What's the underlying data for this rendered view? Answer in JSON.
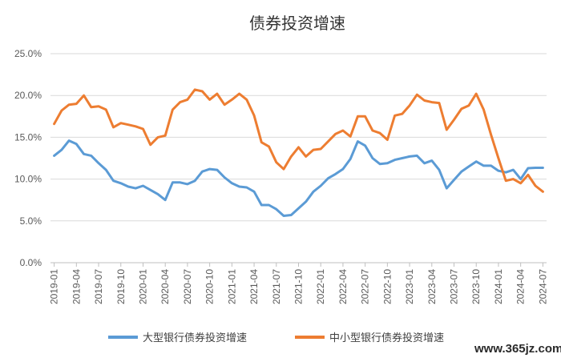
{
  "chart_data": {
    "type": "line",
    "title": "债券投资增速",
    "x": [
      "2019-01",
      "2019-02",
      "2019-03",
      "2019-04",
      "2019-05",
      "2019-06",
      "2019-07",
      "2019-08",
      "2019-09",
      "2019-10",
      "2019-11",
      "2019-12",
      "2020-01",
      "2020-02",
      "2020-03",
      "2020-04",
      "2020-05",
      "2020-06",
      "2020-07",
      "2020-08",
      "2020-09",
      "2020-10",
      "2020-11",
      "2020-12",
      "2021-01",
      "2021-02",
      "2021-03",
      "2021-04",
      "2021-05",
      "2021-06",
      "2021-07",
      "2021-08",
      "2021-09",
      "2021-10",
      "2021-11",
      "2021-12",
      "2022-01",
      "2022-02",
      "2022-03",
      "2022-04",
      "2022-05",
      "2022-06",
      "2022-07",
      "2022-08",
      "2022-09",
      "2022-10",
      "2022-11",
      "2022-12",
      "2023-01",
      "2023-02",
      "2023-03",
      "2023-04",
      "2023-05",
      "2023-06",
      "2023-07",
      "2023-08",
      "2023-09",
      "2023-10",
      "2023-11",
      "2023-12",
      "2024-01",
      "2024-02",
      "2024-03",
      "2024-04",
      "2024-05",
      "2024-06",
      "2024-07"
    ],
    "tick_labels": [
      "2019-01",
      "2019-04",
      "2019-07",
      "2019-10",
      "2020-01",
      "2020-04",
      "2020-07",
      "2020-10",
      "2021-01",
      "2021-04",
      "2021-07",
      "2021-10",
      "2022-01",
      "2022-04",
      "2022-07",
      "2022-10",
      "2023-01",
      "2023-04",
      "2023-07",
      "2023-10",
      "2024-01",
      "2024-04",
      "2024-07"
    ],
    "ylim": [
      0,
      25
    ],
    "y_ticks": [
      "0.0%",
      "5.0%",
      "10.0%",
      "15.0%",
      "20.0%",
      "25.0%"
    ],
    "grid": "horizontal",
    "legend_position": "bottom",
    "series": [
      {
        "name": "大型银行债券投资增速",
        "color": "#5B9BD5",
        "values": [
          12.8,
          13.5,
          14.6,
          14.2,
          13.0,
          12.8,
          11.9,
          11.1,
          9.8,
          9.5,
          9.1,
          8.9,
          9.2,
          8.7,
          8.2,
          7.5,
          9.6,
          9.6,
          9.4,
          9.8,
          10.9,
          11.2,
          11.1,
          10.2,
          9.5,
          9.1,
          9.0,
          8.5,
          6.9,
          6.9,
          6.4,
          5.6,
          5.7,
          6.5,
          7.3,
          8.5,
          9.2,
          10.1,
          10.6,
          11.2,
          12.4,
          14.5,
          14.0,
          12.5,
          11.8,
          11.9,
          12.3,
          12.5,
          12.7,
          12.8,
          11.9,
          12.2,
          11.1,
          8.9,
          9.9,
          10.9,
          11.5,
          12.1,
          11.6,
          11.6,
          11.0,
          10.8,
          11.1,
          10.0,
          11.3,
          11.35,
          11.35
        ]
      },
      {
        "name": "中小型银行债券投资增速",
        "color": "#ED7D31",
        "values": [
          16.6,
          18.2,
          18.9,
          19.0,
          20.0,
          18.6,
          18.7,
          18.3,
          16.2,
          16.7,
          16.5,
          16.3,
          16.0,
          14.1,
          15.0,
          15.2,
          18.3,
          19.2,
          19.5,
          20.7,
          20.5,
          19.5,
          20.2,
          18.9,
          19.5,
          20.2,
          19.5,
          17.6,
          14.4,
          13.9,
          12.0,
          11.2,
          12.7,
          13.8,
          12.7,
          13.5,
          13.6,
          14.5,
          15.4,
          15.8,
          15.1,
          17.5,
          17.5,
          15.8,
          15.5,
          14.7,
          17.6,
          17.8,
          18.8,
          20.1,
          19.4,
          19.2,
          19.1,
          15.9,
          17.1,
          18.4,
          18.8,
          20.2,
          18.3,
          15.3,
          12.5,
          9.8,
          10.0,
          9.5,
          10.5,
          9.2,
          8.5
        ]
      }
    ]
  },
  "watermark": "www.365jz.com"
}
